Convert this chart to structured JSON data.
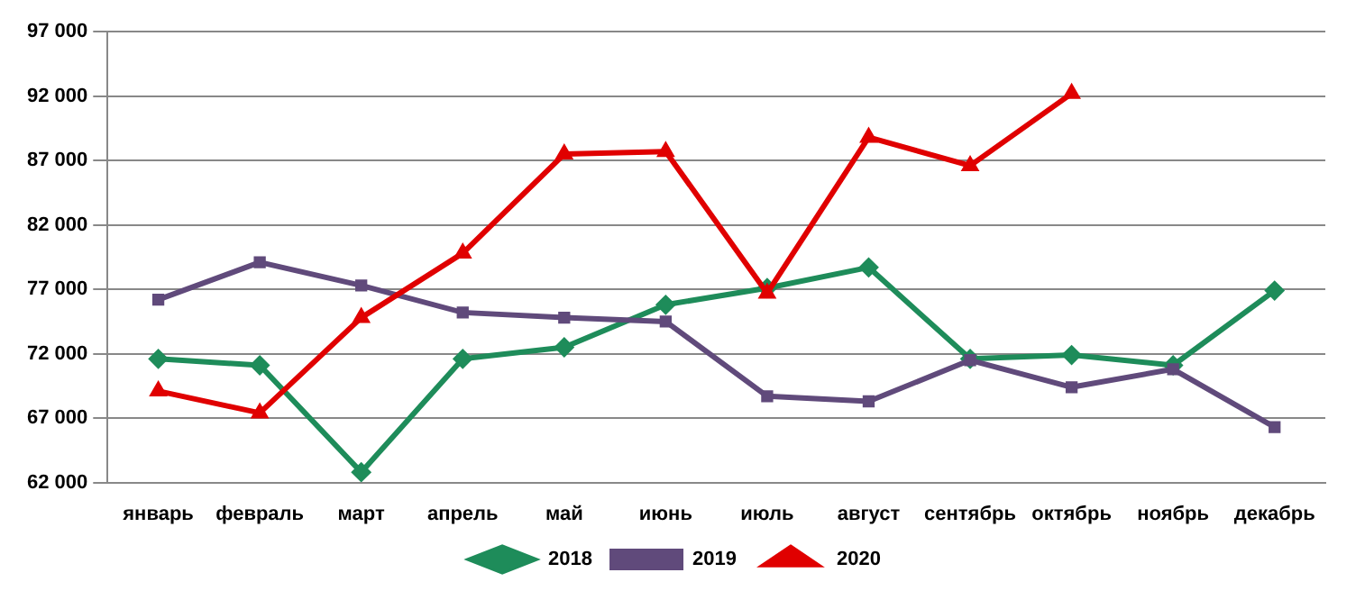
{
  "chart_data": {
    "type": "line",
    "categories": [
      "январь",
      "февраль",
      "март",
      "апрель",
      "май",
      "июнь",
      "июль",
      "август",
      "сентябрь",
      "октябрь",
      "ноябрь",
      "декабрь"
    ],
    "series": [
      {
        "name": "2018",
        "color": "#1e8c5a",
        "marker": "diamond",
        "values": [
          71600,
          71100,
          62800,
          71600,
          72500,
          75800,
          77100,
          78700,
          71600,
          71900,
          71100,
          76900
        ]
      },
      {
        "name": "2019",
        "color": "#604a7b",
        "marker": "square",
        "values": [
          76200,
          79100,
          77300,
          75200,
          74800,
          74500,
          68700,
          68300,
          71500,
          69400,
          70800,
          66300
        ]
      },
      {
        "name": "2020",
        "color": "#e00000",
        "marker": "triangle",
        "values": [
          69100,
          67400,
          74800,
          79800,
          87500,
          87700,
          76700,
          88800,
          86600,
          92200,
          null,
          null
        ]
      }
    ],
    "ylim": [
      62000,
      97000
    ],
    "yticks": [
      {
        "value": 62000,
        "label": "62 000"
      },
      {
        "value": 67000,
        "label": "67 000"
      },
      {
        "value": 72000,
        "label": "72 000"
      },
      {
        "value": 77000,
        "label": "77 000"
      },
      {
        "value": 82000,
        "label": "82 000"
      },
      {
        "value": 87000,
        "label": "87 000"
      },
      {
        "value": 92000,
        "label": "92 000"
      },
      {
        "value": 97000,
        "label": "97 000"
      }
    ],
    "grid": "y",
    "legend": "bottom",
    "line_style": "solid"
  }
}
